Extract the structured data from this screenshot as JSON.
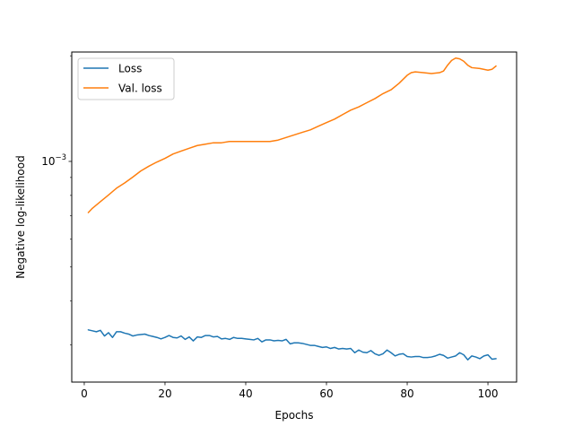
{
  "chart_data": {
    "type": "line",
    "title": "",
    "xlabel": "Epochs",
    "ylabel": "Negative log-likelihood",
    "yscale": "log",
    "grid": false,
    "legend_position": "top-left",
    "xlim": [
      -3.1,
      107.1
    ],
    "ylim": [
      0.000235,
      0.00205
    ],
    "x_ticks": [
      0,
      20,
      40,
      60,
      80,
      100
    ],
    "y_ticks": [
      {
        "value": 0.001,
        "base": "10",
        "exponent": "−3"
      }
    ],
    "series": [
      {
        "name": "Loss",
        "color": "#1f77b4",
        "x": [
          1,
          2,
          3,
          4,
          5,
          6,
          7,
          8,
          9,
          10,
          11,
          12,
          13,
          14,
          15,
          16,
          17,
          18,
          19,
          20,
          21,
          22,
          23,
          24,
          25,
          26,
          27,
          28,
          29,
          30,
          31,
          32,
          33,
          34,
          35,
          36,
          37,
          38,
          39,
          40,
          41,
          42,
          43,
          44,
          45,
          46,
          47,
          48,
          49,
          50,
          51,
          52,
          53,
          54,
          55,
          56,
          57,
          58,
          59,
          60,
          61,
          62,
          63,
          64,
          65,
          66,
          67,
          68,
          69,
          70,
          71,
          72,
          73,
          74,
          75,
          76,
          77,
          78,
          79,
          80,
          81,
          82,
          83,
          84,
          85,
          86,
          87,
          88,
          89,
          90,
          91,
          92,
          93,
          94,
          95,
          96,
          97,
          98,
          99,
          100,
          101,
          102
        ],
        "y": [
          0.000331,
          0.000329,
          0.000327,
          0.00033,
          0.000318,
          0.000325,
          0.000315,
          0.000327,
          0.000327,
          0.000324,
          0.000322,
          0.000318,
          0.00032,
          0.000321,
          0.000322,
          0.000319,
          0.000317,
          0.000315,
          0.000312,
          0.000315,
          0.000319,
          0.000315,
          0.000314,
          0.000318,
          0.000311,
          0.000316,
          0.000308,
          0.000316,
          0.000315,
          0.000319,
          0.000319,
          0.000316,
          0.000317,
          0.000312,
          0.000313,
          0.000311,
          0.000315,
          0.000313,
          0.000313,
          0.000312,
          0.000311,
          0.00031,
          0.000313,
          0.000306,
          0.00031,
          0.00031,
          0.000308,
          0.000309,
          0.000308,
          0.000311,
          0.000302,
          0.000304,
          0.000304,
          0.000303,
          0.000301,
          0.000299,
          0.000299,
          0.000297,
          0.000295,
          0.000296,
          0.000293,
          0.000295,
          0.000292,
          0.000293,
          0.000292,
          0.000293,
          0.000285,
          0.00029,
          0.000286,
          0.000285,
          0.000289,
          0.000283,
          0.00028,
          0.000283,
          0.00029,
          0.000285,
          0.000279,
          0.000282,
          0.000283,
          0.000278,
          0.000277,
          0.000278,
          0.000278,
          0.000276,
          0.000276,
          0.000277,
          0.000279,
          0.000282,
          0.00028,
          0.000275,
          0.000277,
          0.000279,
          0.000285,
          0.000281,
          0.000272,
          0.000279,
          0.000277,
          0.000274,
          0.000279,
          0.000281,
          0.000273,
          0.000274
        ]
      },
      {
        "name": "Val. loss",
        "color": "#ff7f0e",
        "x": [
          1,
          2,
          4,
          6,
          8,
          10,
          12,
          14,
          16,
          18,
          20,
          22,
          24,
          26,
          28,
          30,
          32,
          34,
          36,
          38,
          40,
          42,
          44,
          46,
          48,
          50,
          52,
          54,
          56,
          58,
          60,
          62,
          64,
          66,
          68,
          70,
          72,
          74,
          76,
          78,
          80,
          81,
          82,
          84,
          86,
          88,
          89,
          90,
          91,
          92,
          93,
          94,
          95,
          96,
          98,
          100,
          101,
          102
        ],
        "y": [
          0.000715,
          0.000735,
          0.000768,
          0.000802,
          0.000839,
          0.000868,
          0.000902,
          0.000939,
          0.000969,
          0.000996,
          0.00102,
          0.00105,
          0.00107,
          0.00109,
          0.00111,
          0.00112,
          0.00113,
          0.00113,
          0.00114,
          0.00114,
          0.00114,
          0.00114,
          0.00114,
          0.00114,
          0.00115,
          0.00117,
          0.00119,
          0.00121,
          0.00123,
          0.00126,
          0.00129,
          0.00132,
          0.00136,
          0.0014,
          0.00143,
          0.00147,
          0.00151,
          0.00156,
          0.0016,
          0.00167,
          0.00176,
          0.00179,
          0.0018,
          0.00179,
          0.00178,
          0.00179,
          0.00181,
          0.00188,
          0.00194,
          0.00197,
          0.00196,
          0.00193,
          0.00188,
          0.00185,
          0.00184,
          0.00182,
          0.00183,
          0.00187
        ]
      }
    ]
  }
}
